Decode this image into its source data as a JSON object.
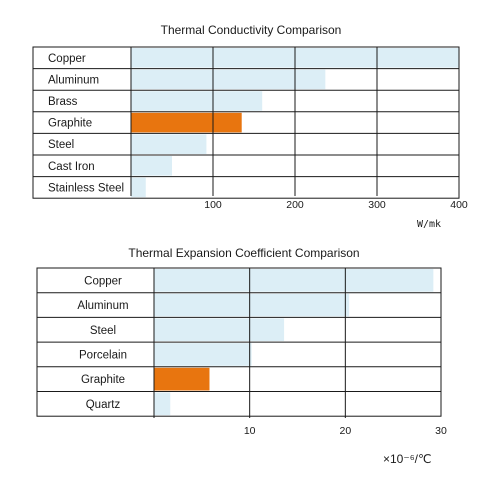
{
  "chart_data": [
    {
      "type": "bar",
      "orientation": "horizontal",
      "title": "Thermal Conductivity Comparison",
      "unit": "W/mk",
      "categories": [
        "Copper",
        "Aluminum",
        "Brass",
        "Graphite",
        "Steel",
        "Cast Iron",
        "Stainless Steel"
      ],
      "values": [
        400,
        237,
        160,
        135,
        92,
        50,
        18
      ],
      "highlight": "Graphite",
      "xlim": [
        0,
        400
      ],
      "ticks": [
        100,
        200,
        300,
        400
      ],
      "tick_labels": [
        "100",
        "200",
        "300",
        "400"
      ],
      "grid": true,
      "bar_color": "#dceef6",
      "highlight_color": "#e8750f"
    },
    {
      "type": "bar",
      "orientation": "horizontal",
      "title": "Thermal Expansion Coefficient Comparison",
      "unit": "×10⁻⁶/℃",
      "categories": [
        "Copper",
        "Aluminum",
        "Steel",
        "Porcelain",
        "Graphite",
        "Quartz"
      ],
      "values": [
        29.2,
        20.4,
        13.6,
        10.2,
        5.8,
        1.7
      ],
      "highlight": "Graphite",
      "xlim": [
        0,
        30
      ],
      "ticks": [
        10,
        20,
        30
      ],
      "tick_labels": [
        "10",
        "20",
        "30"
      ],
      "grid": true,
      "bar_color": "#dceef6",
      "highlight_color": "#e8750f"
    }
  ]
}
